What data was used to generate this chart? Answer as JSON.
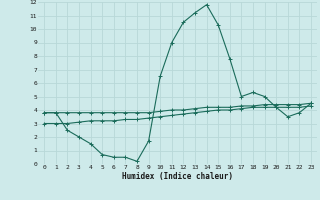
{
  "bg_color": "#ceeaea",
  "grid_color": "#b8d8d8",
  "line_color": "#1a6b5a",
  "xlim": [
    -0.5,
    23.5
  ],
  "ylim": [
    0,
    12
  ],
  "xticks": [
    0,
    1,
    2,
    3,
    4,
    5,
    6,
    7,
    8,
    9,
    10,
    11,
    12,
    13,
    14,
    15,
    16,
    17,
    18,
    19,
    20,
    21,
    22,
    23
  ],
  "yticks": [
    0,
    1,
    2,
    3,
    4,
    5,
    6,
    7,
    8,
    9,
    10,
    11,
    12
  ],
  "xlabel": "Humidex (Indice chaleur)",
  "series": [
    {
      "x": [
        0,
        1,
        2,
        3,
        4,
        5,
        6,
        7,
        8,
        9,
        10,
        11,
        12,
        13,
        14,
        15,
        16,
        17,
        18,
        19,
        20,
        21,
        22,
        23
      ],
      "y": [
        3.8,
        3.8,
        2.5,
        2.0,
        1.5,
        0.7,
        0.5,
        0.5,
        0.2,
        1.7,
        6.5,
        9.0,
        10.5,
        11.2,
        11.8,
        10.3,
        7.8,
        5.0,
        5.3,
        5.0,
        4.2,
        3.5,
        3.8,
        4.5
      ]
    },
    {
      "x": [
        0,
        1,
        2,
        3,
        4,
        5,
        6,
        7,
        8,
        9,
        10,
        11,
        12,
        13,
        14,
        15,
        16,
        17,
        18,
        19,
        20,
        21,
        22,
        23
      ],
      "y": [
        3.8,
        3.8,
        3.8,
        3.8,
        3.8,
        3.8,
        3.8,
        3.8,
        3.8,
        3.8,
        3.9,
        4.0,
        4.0,
        4.1,
        4.2,
        4.2,
        4.2,
        4.3,
        4.3,
        4.4,
        4.4,
        4.4,
        4.4,
        4.5
      ]
    },
    {
      "x": [
        0,
        1,
        2,
        3,
        4,
        5,
        6,
        7,
        8,
        9,
        10,
        11,
        12,
        13,
        14,
        15,
        16,
        17,
        18,
        19,
        20,
        21,
        22,
        23
      ],
      "y": [
        3.0,
        3.0,
        3.0,
        3.1,
        3.2,
        3.2,
        3.2,
        3.3,
        3.3,
        3.4,
        3.5,
        3.6,
        3.7,
        3.8,
        3.9,
        4.0,
        4.0,
        4.1,
        4.2,
        4.2,
        4.2,
        4.2,
        4.2,
        4.3
      ]
    }
  ]
}
